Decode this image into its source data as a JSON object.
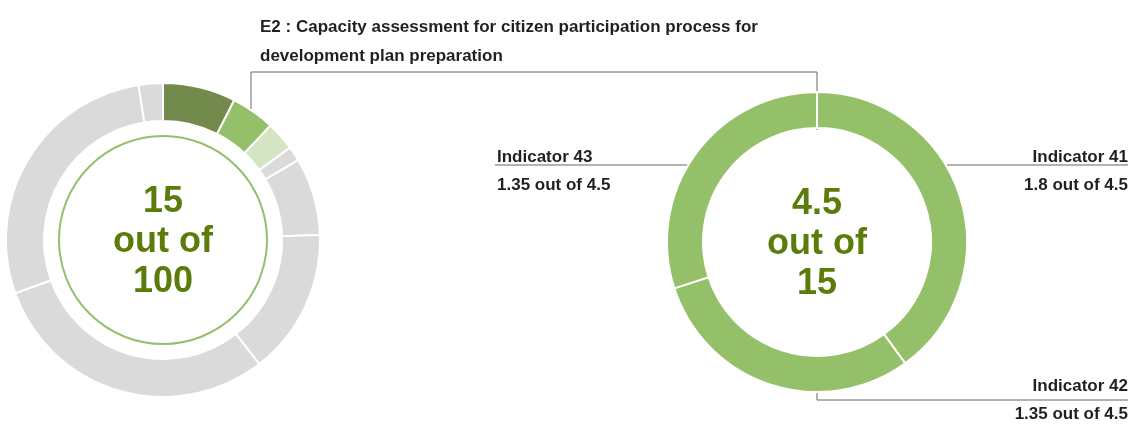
{
  "chart_data": [
    {
      "type": "donut",
      "categories": [
        null,
        null,
        null,
        null,
        null,
        null,
        null,
        null,
        null
      ],
      "values": [
        7.5,
        4.5,
        3,
        1.5,
        8,
        15,
        30,
        28,
        2.5
      ],
      "colors": [
        "#738a4d",
        "#94c06a",
        "#d5e5c3",
        "#dadada",
        "#dadada",
        "#dadada",
        "#dadada",
        "#dadada",
        "#dadada"
      ],
      "annotations": [
        "15 out of 100"
      ]
    },
    {
      "type": "donut",
      "title": "E2 : Capacity assessment for citizen participation process for development plan preparation",
      "categories": [
        "Indicator 41",
        "Indicator 42",
        "Indicator 43"
      ],
      "values": [
        1.8,
        1.35,
        1.35
      ],
      "colors": [
        "#94c06a",
        "#94c06a",
        "#94c06a"
      ],
      "value_labels": [
        "1.8 out of 4.5",
        "1.35 out of 4.5",
        "1.35 out of 4.5"
      ],
      "annotations": [
        "4.5 out of 15"
      ]
    }
  ]
}
